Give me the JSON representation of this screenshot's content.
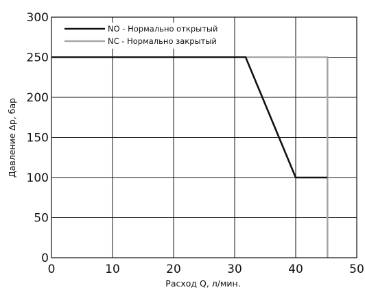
{
  "chart_data": {
    "type": "line",
    "xlabel": "Расход Q, л/мин.",
    "ylabel": "Давление Δp, бар",
    "xlim": [
      0,
      50
    ],
    "ylim": [
      0,
      300
    ],
    "xticks": [
      0,
      10,
      20,
      30,
      40,
      50
    ],
    "yticks": [
      0,
      50,
      100,
      150,
      200,
      250,
      300
    ],
    "grid": true,
    "legend_position": "top-left",
    "series": [
      {
        "name": "NO - Нормально открытый",
        "color": "#111111",
        "x": [
          0,
          31.8,
          40,
          45.2
        ],
        "y": [
          250,
          250,
          100,
          100
        ]
      },
      {
        "name": "NC - Нормально закрытый",
        "color": "#a6a6a6",
        "x": [
          31.8,
          45.2,
          45.2
        ],
        "y": [
          250,
          250,
          0
        ]
      }
    ]
  }
}
